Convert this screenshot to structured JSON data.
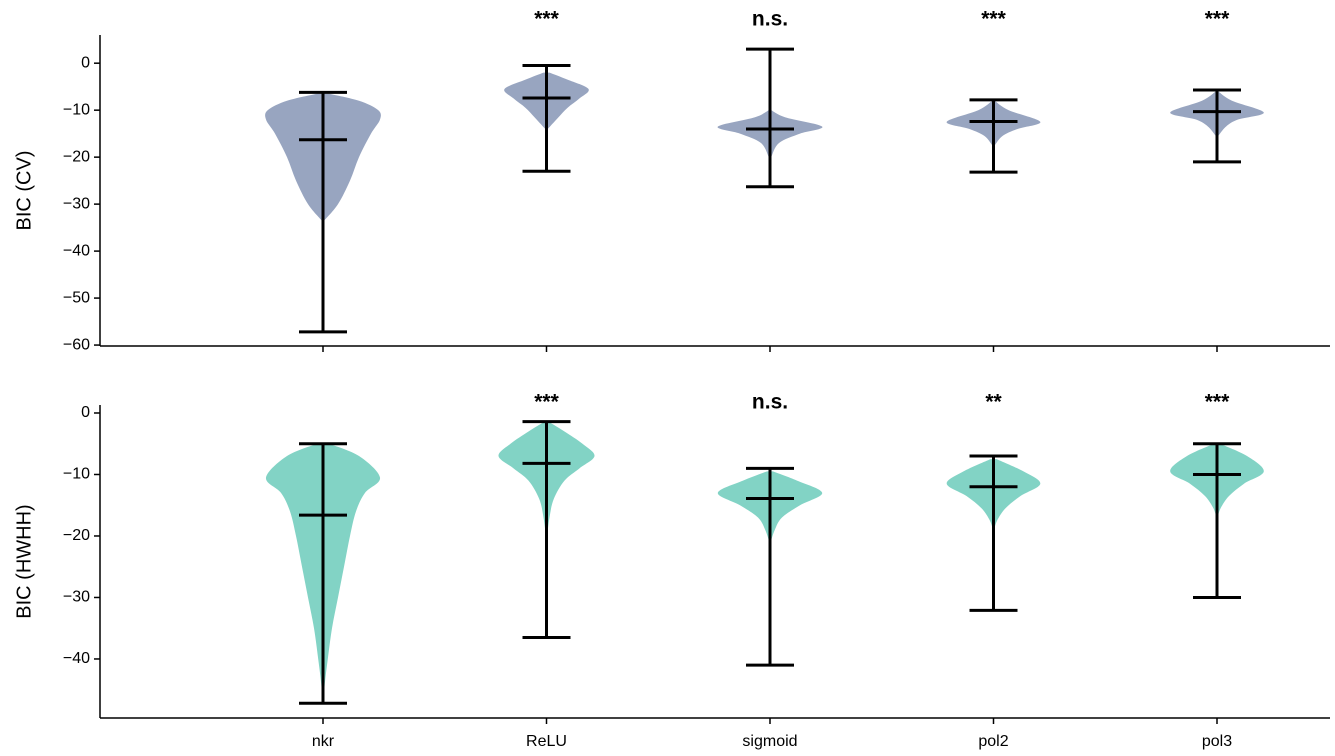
{
  "chart_data": [
    {
      "type": "violin",
      "ylabel": "BIC (CV)",
      "color": "#98a5c0",
      "ylim": [
        -60.2,
        6
      ],
      "yticks": [
        {
          "value": 0,
          "label": "0"
        },
        {
          "value": -10,
          "label": "−10"
        },
        {
          "value": -20,
          "label": "−20"
        },
        {
          "value": -30,
          "label": "−30"
        },
        {
          "value": -40,
          "label": "−40"
        },
        {
          "value": -50,
          "label": "−50"
        },
        {
          "value": -60,
          "label": "−60"
        }
      ],
      "annotations": [
        null,
        "***",
        "n.s.",
        "***",
        "***"
      ],
      "violins": [
        {
          "max": -6.2,
          "min": -57.2,
          "mean": -16.3,
          "profile_y": [
            -6.5,
            -8,
            -10,
            -12,
            -15,
            -20,
            -25,
            -30,
            -33.5
          ],
          "profile_width": [
            0.1,
            0.6,
            0.92,
            0.95,
            0.8,
            0.6,
            0.45,
            0.25,
            0.02
          ]
        },
        {
          "max": -0.5,
          "min": -23,
          "mean": -7.4,
          "profile_y": [
            -2,
            -3.5,
            -5.5,
            -7.5,
            -9.5,
            -11.5,
            -14
          ],
          "profile_width": [
            0.05,
            0.35,
            0.7,
            0.55,
            0.35,
            0.2,
            0.02
          ]
        },
        {
          "max": 3,
          "min": -26.3,
          "mean": -14,
          "profile_y": [
            -10,
            -11.5,
            -13.5,
            -15,
            -17,
            -20
          ],
          "profile_width": [
            0.02,
            0.25,
            0.87,
            0.5,
            0.15,
            0.02
          ]
        },
        {
          "max": -7.8,
          "min": -23.2,
          "mean": -12.4,
          "profile_y": [
            -8,
            -10,
            -12.5,
            -14,
            -15.5,
            -17.5
          ],
          "profile_width": [
            0.02,
            0.25,
            0.78,
            0.4,
            0.15,
            0.02
          ]
        },
        {
          "max": -5.7,
          "min": -21,
          "mean": -10.3,
          "profile_y": [
            -6,
            -8,
            -10.5,
            -12,
            -13.5,
            -15.5
          ],
          "profile_width": [
            0.02,
            0.25,
            0.78,
            0.35,
            0.15,
            0.02
          ]
        }
      ]
    },
    {
      "type": "violin",
      "ylabel": "BIC (HWHH)",
      "color": "#82d3c5",
      "ylim": [
        -49.6,
        1.3
      ],
      "yticks": [
        {
          "value": 0,
          "label": "0"
        },
        {
          "value": -10,
          "label": "−10"
        },
        {
          "value": -20,
          "label": "−20"
        },
        {
          "value": -30,
          "label": "−30"
        },
        {
          "value": -40,
          "label": "−40"
        }
      ],
      "categories": [
        "nkr",
        "ReLU",
        "sigmoid",
        "pol2",
        "pol3"
      ],
      "annotations": [
        null,
        "***",
        "n.s.",
        "**",
        "***"
      ],
      "violins": [
        {
          "max": -5,
          "min": -47.2,
          "mean": -16.6,
          "profile_y": [
            -5,
            -7,
            -10.5,
            -13,
            -16,
            -20,
            -25,
            -30,
            -35,
            -40,
            -44,
            -47
          ],
          "profile_width": [
            0.1,
            0.6,
            0.95,
            0.7,
            0.55,
            0.45,
            0.35,
            0.25,
            0.15,
            0.08,
            0.03,
            0.01
          ]
        },
        {
          "max": -1.4,
          "min": -36.5,
          "mean": -8.2,
          "profile_y": [
            -1.5,
            -3,
            -5,
            -7,
            -9,
            -11,
            -14,
            -17,
            -20
          ],
          "profile_width": [
            0.05,
            0.3,
            0.6,
            0.8,
            0.55,
            0.3,
            0.12,
            0.05,
            0.01
          ]
        },
        {
          "max": -9,
          "min": -41,
          "mean": -13.9,
          "profile_y": [
            -9.5,
            -11,
            -13,
            -15,
            -17,
            -19,
            -21
          ],
          "profile_width": [
            0.05,
            0.45,
            0.87,
            0.5,
            0.2,
            0.08,
            0.01
          ]
        },
        {
          "max": -7,
          "min": -32.1,
          "mean": -12,
          "profile_y": [
            -7.5,
            -9.5,
            -11.5,
            -13.5,
            -15.5,
            -17.5,
            -19
          ],
          "profile_width": [
            0.05,
            0.5,
            0.78,
            0.45,
            0.2,
            0.06,
            0.01
          ]
        },
        {
          "max": -5,
          "min": -30,
          "mean": -10,
          "profile_y": [
            -5,
            -7,
            -9.5,
            -11.5,
            -13.5,
            -15.5,
            -17
          ],
          "profile_width": [
            0.05,
            0.5,
            0.78,
            0.45,
            0.2,
            0.06,
            0.01
          ]
        }
      ]
    }
  ]
}
